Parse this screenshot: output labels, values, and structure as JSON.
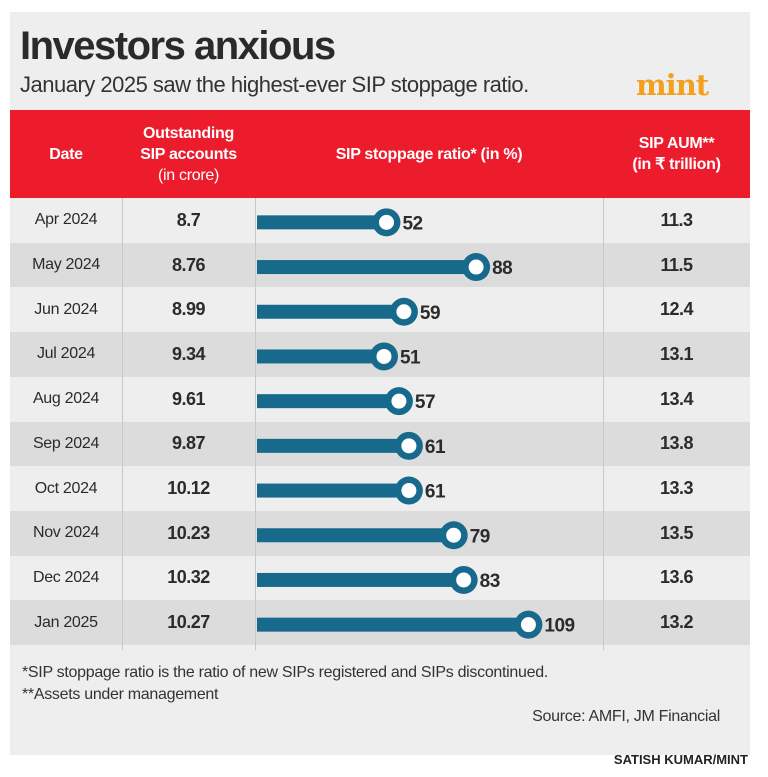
{
  "title": "Investors anxious",
  "subtitle": "January 2025 saw the highest-ever SIP stoppage ratio.",
  "logo": "mint",
  "chart_data": {
    "type": "table",
    "columns": [
      "Date",
      "Outstanding SIP accounts (in crore)",
      "SIP stoppage ratio* (in %)",
      "SIP AUM** (in ₹ trillion)"
    ],
    "header": {
      "date": "Date",
      "accounts_l1": "Outstanding",
      "accounts_l2": "SIP accounts",
      "accounts_l3": "(in crore)",
      "ratio": "SIP stoppage ratio* (in %)",
      "aum_l1": "SIP AUM**",
      "aum_l2": "(in ₹ trillion)"
    },
    "rows": [
      {
        "date": "Apr 2024",
        "accounts": "8.7",
        "ratio": "52",
        "aum": "11.3"
      },
      {
        "date": "May 2024",
        "accounts": "8.76",
        "ratio": "88",
        "aum": "11.5"
      },
      {
        "date": "Jun 2024",
        "accounts": "8.99",
        "ratio": "59",
        "aum": "12.4"
      },
      {
        "date": "Jul 2024",
        "accounts": "9.34",
        "ratio": "51",
        "aum": "13.1"
      },
      {
        "date": "Aug 2024",
        "accounts": "9.61",
        "ratio": "57",
        "aum": "13.4"
      },
      {
        "date": "Sep 2024",
        "accounts": "9.87",
        "ratio": "61",
        "aum": "13.8"
      },
      {
        "date": "Oct 2024",
        "accounts": "10.12",
        "ratio": "61",
        "aum": "13.3"
      },
      {
        "date": "Nov 2024",
        "accounts": "10.23",
        "ratio": "79",
        "aum": "13.5"
      },
      {
        "date": "Dec 2024",
        "accounts": "10.32",
        "ratio": "83",
        "aum": "13.6"
      },
      {
        "date": "Jan 2025",
        "accounts": "10.27",
        "ratio": "109",
        "aum": "13.2"
      }
    ],
    "bar_type": "lollipop bar",
    "xlim": [
      0,
      120
    ]
  },
  "colors": {
    "header": "#ec1c2d",
    "bar": "#176a8c",
    "logo": "#f2a01e"
  },
  "footnote1": "*SIP stoppage ratio is the ratio of new SIPs registered and SIPs discontinued.",
  "footnote2": "**Assets under management",
  "source": "Source: AMFI, JM Financial",
  "credit": "SATISH KUMAR/MINT"
}
